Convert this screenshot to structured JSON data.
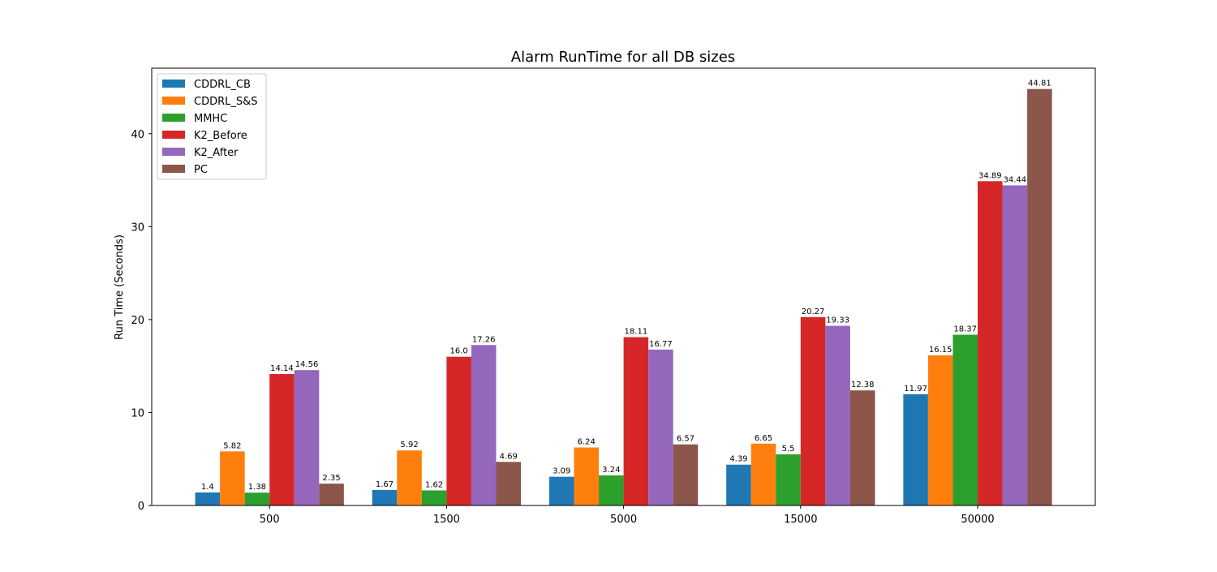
{
  "chart_data": {
    "type": "bar",
    "title": "Alarm RunTime for all DB sizes",
    "xlabel": "",
    "ylabel": "Run Time (Seconds)",
    "ylim": [
      0,
      47.05
    ],
    "yticks": [
      0,
      10,
      20,
      30,
      40
    ],
    "categories": [
      "500",
      "1500",
      "5000",
      "15000",
      "50000"
    ],
    "legend_position": "top-left",
    "grid": false,
    "series": [
      {
        "name": "CDDRL_CB",
        "color": "#1f77b4",
        "values": [
          1.4,
          1.67,
          3.09,
          4.39,
          11.97
        ],
        "labels": [
          "1.4",
          "1.67",
          "3.09",
          "4.39",
          "11.97"
        ]
      },
      {
        "name": "CDDRL_S&S",
        "color": "#ff7f0e",
        "values": [
          5.82,
          5.92,
          6.24,
          6.65,
          16.15
        ],
        "labels": [
          "5.82",
          "5.92",
          "6.24",
          "6.65",
          "16.15"
        ]
      },
      {
        "name": "MMHC",
        "color": "#2ca02c",
        "values": [
          1.38,
          1.62,
          3.24,
          5.5,
          18.37
        ],
        "labels": [
          "1.38",
          "1.62",
          "3.24",
          "5.5",
          "18.37"
        ]
      },
      {
        "name": "K2_Before",
        "color": "#d62728",
        "values": [
          14.14,
          16.0,
          18.11,
          20.27,
          34.89
        ],
        "labels": [
          "14.14",
          "16.0",
          "18.11",
          "20.27",
          "34.89"
        ]
      },
      {
        "name": "K2_After",
        "color": "#9467bd",
        "values": [
          14.56,
          17.26,
          16.77,
          19.33,
          34.44
        ],
        "labels": [
          "14.56",
          "17.26",
          "16.77",
          "19.33",
          "34.44"
        ]
      },
      {
        "name": "PC",
        "color": "#8c564b",
        "values": [
          2.35,
          4.69,
          6.57,
          12.38,
          44.81
        ],
        "labels": [
          "2.35",
          "4.69",
          "6.57",
          "12.38",
          "44.81"
        ]
      }
    ]
  }
}
